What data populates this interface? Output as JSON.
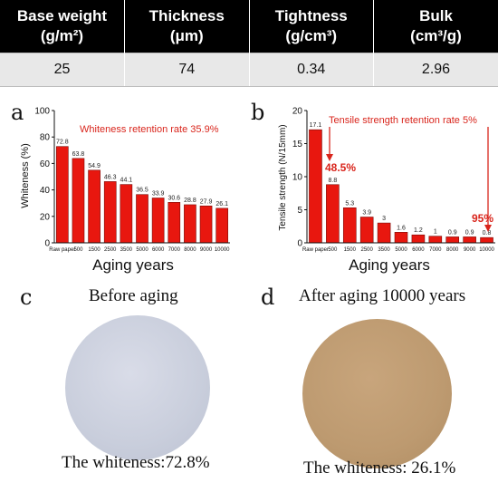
{
  "table": {
    "headers": [
      [
        "Base weight",
        "(g/m²)"
      ],
      [
        "Thickness",
        "(μm)"
      ],
      [
        "Tightness",
        "(g/cm³)"
      ],
      [
        "Bulk",
        "(cm³/g)"
      ]
    ],
    "values": [
      "25",
      "74",
      "0.34",
      "2.96"
    ]
  },
  "chart_data": [
    {
      "panel": "a",
      "type": "bar",
      "categories": [
        "Raw paper",
        "500",
        "1500",
        "2500",
        "3500",
        "5000",
        "6000",
        "7000",
        "8000",
        "9000",
        "10000"
      ],
      "values": [
        72.8,
        63.8,
        54.9,
        46.3,
        44.1,
        36.5,
        33.9,
        30.6,
        28.8,
        27.9,
        26.1
      ],
      "xlabel": "Aging years",
      "ylabel": "Whiteness (%)",
      "ylim": [
        0,
        100
      ],
      "yticks": [
        0,
        20,
        40,
        60,
        80,
        100
      ],
      "bar_color": "#e8170f",
      "annotations": [
        "Whiteness retention rate 35.9%"
      ],
      "grid": false
    },
    {
      "panel": "b",
      "type": "bar",
      "categories": [
        "Raw paper",
        "500",
        "1500",
        "2500",
        "3500",
        "5000",
        "6000",
        "7000",
        "8000",
        "9000",
        "10000"
      ],
      "values": [
        17.1,
        8.8,
        5.3,
        3.9,
        3,
        1.6,
        1.2,
        1,
        0.9,
        0.9,
        0.8
      ],
      "xlabel": "Aging years",
      "ylabel": "Tensile strength (N/15mm)",
      "ylim": [
        0,
        20
      ],
      "yticks": [
        0,
        5,
        10,
        15,
        20
      ],
      "bar_color": "#e8170f",
      "annotations": [
        "Tensile strength retention rate 5%",
        "48.5%",
        "95%"
      ],
      "grid": false
    }
  ],
  "photos": {
    "c": {
      "letter": "c",
      "title": "Before aging",
      "caption": "The whiteness:72.8%",
      "color": "#c9cedc"
    },
    "d": {
      "letter": "d",
      "title": "After aging 10000 years",
      "caption": "The whiteness: 26.1%",
      "color": "#bd9a70"
    }
  }
}
